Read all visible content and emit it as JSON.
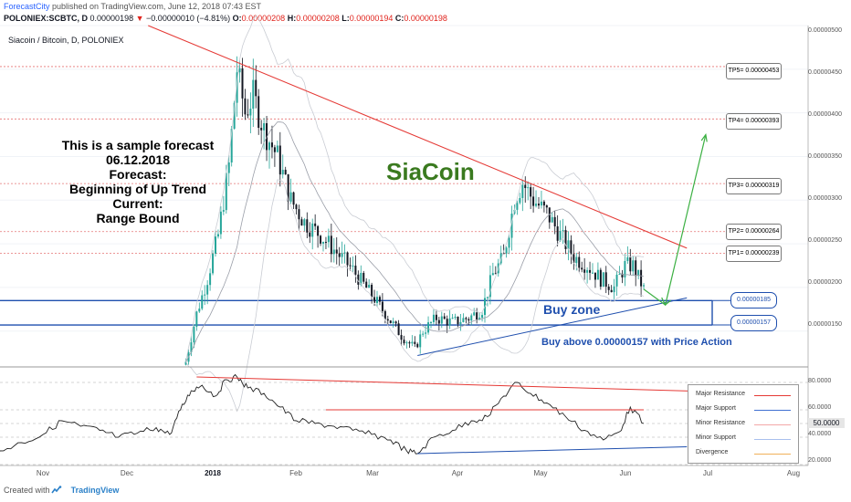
{
  "header": {
    "brand": "ForecastCity",
    "published": " published on TradingView.com, June 12, 2018 07:43 EST",
    "symbol": "POLONIEX:SCBTC, D",
    "last": "0.00000198",
    "change": "−0.00000010 (−4.81%)",
    "o_label": "O:",
    "o": "0.00000208",
    "h_label": "H:",
    "h": "0.00000208",
    "l_label": "L:",
    "l": "0.00000194",
    "c_label": "C:",
    "c": "0.00000198",
    "arrow": "▼"
  },
  "pane_title": "Siacoin / Bitcoin, D, POLONIEX",
  "forecast_text": [
    "This is a sample forecast",
    "06.12.2018",
    "Forecast:",
    "Beginning of Up Trend",
    "Current:",
    "Range Bound"
  ],
  "annotation_title": "SiaCoin",
  "buy_zone_label": "Buy zone",
  "buy_above_label": "Buy above 0.00000157 with Price Action",
  "targets": [
    {
      "label": "TP5= 0.00000453",
      "value": 4.53e-06
    },
    {
      "label": "TP4= 0.00000393",
      "value": 3.93e-06
    },
    {
      "label": "TP3= 0.00000319",
      "value": 3.19e-06
    },
    {
      "label": "TP2= 0.00000264",
      "value": 2.64e-06
    },
    {
      "label": "TP1= 0.00000239",
      "value": 2.39e-06
    }
  ],
  "zones": [
    {
      "label": "0.00000185",
      "value": 1.85e-06
    },
    {
      "label": "0.00000157",
      "value": 1.57e-06
    }
  ],
  "price_axis": [
    "0.00000500",
    "0.00000450",
    "0.00000400",
    "0.00000350",
    "0.00000300",
    "0.00000250",
    "0.00000200",
    "0.00000150"
  ],
  "rsi_axis": [
    "80.0000",
    "60.0000",
    "40.0000",
    "20.0000"
  ],
  "rsi_current": "50.0000",
  "time_axis": [
    "Nov",
    "Dec",
    "2018",
    "Feb",
    "Mar",
    "Apr",
    "May",
    "Jun",
    "Jul",
    "Aug"
  ],
  "legend": [
    {
      "label": "Major Resistance",
      "color": "#e53935"
    },
    {
      "label": "Major Support",
      "color": "#3f6fd1"
    },
    {
      "label": "Minor Resistance",
      "color": "#f3a7a7"
    },
    {
      "label": "Minor Support",
      "color": "#a9c0ee"
    },
    {
      "label": "Divergence",
      "color": "#f0b15a"
    }
  ],
  "footer": {
    "created": "Created with",
    "tv": "TradingView"
  },
  "colors": {
    "up": "#26a69a",
    "down": "#131722",
    "resistance": "#e53935",
    "support": "#1f4fae",
    "arrow": "#3cb043",
    "title_green": "#3a7a1f"
  },
  "chart_data": {
    "type": "candlestick",
    "title": "Siacoin / Bitcoin, D, POLONIEX",
    "ylim": [
      1.1e-06,
      5e-06
    ],
    "x_range": [
      "2017-10-16",
      "2018-08-12"
    ],
    "price_path": [
      [
        "2017-12-24",
        1.15e-06
      ],
      [
        "2017-12-28",
        1.7e-06
      ],
      [
        "2018-01-01",
        2.1e-06
      ],
      [
        "2018-01-05",
        2.6e-06
      ],
      [
        "2018-01-09",
        3.4e-06
      ],
      [
        "2018-01-12",
        4.5e-06
      ],
      [
        "2018-01-15",
        4e-06
      ],
      [
        "2018-01-18",
        4.2e-06
      ],
      [
        "2018-01-22",
        3.8e-06
      ],
      [
        "2018-01-27",
        3.5e-06
      ],
      [
        "2018-02-01",
        3e-06
      ],
      [
        "2018-02-06",
        2.75e-06
      ],
      [
        "2018-02-12",
        2.6e-06
      ],
      [
        "2018-02-18",
        2.4e-06
      ],
      [
        "2018-02-24",
        2.2e-06
      ],
      [
        "2018-03-02",
        1.95e-06
      ],
      [
        "2018-03-08",
        1.7e-06
      ],
      [
        "2018-03-14",
        1.45e-06
      ],
      [
        "2018-03-19",
        1.3e-06
      ],
      [
        "2018-03-22",
        1.5e-06
      ],
      [
        "2018-03-27",
        1.65e-06
      ],
      [
        "2018-04-02",
        1.6e-06
      ],
      [
        "2018-04-08",
        1.65e-06
      ],
      [
        "2018-04-13",
        1.75e-06
      ],
      [
        "2018-04-17",
        2.15e-06
      ],
      [
        "2018-04-21",
        2.35e-06
      ],
      [
        "2018-04-25",
        3e-06
      ],
      [
        "2018-04-28",
        3.2e-06
      ],
      [
        "2018-05-02",
        3e-06
      ],
      [
        "2018-05-07",
        2.85e-06
      ],
      [
        "2018-05-12",
        2.6e-06
      ],
      [
        "2018-05-17",
        2.35e-06
      ],
      [
        "2018-05-22",
        2.25e-06
      ],
      [
        "2018-05-27",
        2.1e-06
      ],
      [
        "2018-06-01",
        2e-06
      ],
      [
        "2018-06-05",
        2.25e-06
      ],
      [
        "2018-06-08",
        2.25e-06
      ],
      [
        "2018-06-12",
        1.98e-06
      ]
    ],
    "resistance_line": [
      [
        "2017-12-10",
        5e-06
      ],
      [
        "2018-06-28",
        2.45e-06
      ]
    ],
    "support_line": [
      [
        "2018-03-20",
        1.22e-06
      ],
      [
        "2018-06-28",
        1.88e-06
      ]
    ],
    "projection": [
      [
        "2018-06-12",
        1.98e-06
      ],
      [
        "2018-06-20",
        1.8e-06
      ],
      [
        "2018-07-05",
        3.75e-06
      ]
    ],
    "rsi": {
      "ylim": [
        20,
        90
      ],
      "path": [
        [
          "2017-10-16",
          30
        ],
        [
          "2017-10-24",
          36
        ],
        [
          "2017-11-01",
          42
        ],
        [
          "2017-11-08",
          52
        ],
        [
          "2017-11-15",
          48
        ],
        [
          "2017-11-22",
          45
        ],
        [
          "2017-11-29",
          40
        ],
        [
          "2017-12-06",
          43
        ],
        [
          "2017-12-13",
          47
        ],
        [
          "2017-12-18",
          42
        ],
        [
          "2017-12-22",
          60
        ],
        [
          "2017-12-26",
          74
        ],
        [
          "2017-12-30",
          78
        ],
        [
          "2018-01-04",
          70
        ],
        [
          "2018-01-08",
          82
        ],
        [
          "2018-01-12",
          84
        ],
        [
          "2018-01-16",
          76
        ],
        [
          "2018-01-22",
          72
        ],
        [
          "2018-01-28",
          62
        ],
        [
          "2018-02-03",
          52
        ],
        [
          "2018-02-10",
          50
        ],
        [
          "2018-02-17",
          48
        ],
        [
          "2018-02-24",
          45
        ],
        [
          "2018-03-03",
          42
        ],
        [
          "2018-03-10",
          38
        ],
        [
          "2018-03-16",
          30
        ],
        [
          "2018-03-20",
          28
        ],
        [
          "2018-03-26",
          40
        ],
        [
          "2018-04-02",
          45
        ],
        [
          "2018-04-09",
          52
        ],
        [
          "2018-04-15",
          55
        ],
        [
          "2018-04-21",
          70
        ],
        [
          "2018-04-26",
          80
        ],
        [
          "2018-05-01",
          72
        ],
        [
          "2018-05-07",
          65
        ],
        [
          "2018-05-14",
          55
        ],
        [
          "2018-05-21",
          45
        ],
        [
          "2018-05-28",
          38
        ],
        [
          "2018-06-03",
          44
        ],
        [
          "2018-06-07",
          62
        ],
        [
          "2018-06-12",
          50
        ]
      ],
      "levels": [
        80,
        60,
        50,
        40,
        20
      ],
      "resistance": [
        [
          "2017-12-28",
          84
        ],
        [
          "2018-07-12",
          73
        ]
      ],
      "resistance2": [
        [
          "2018-02-14",
          60
        ],
        [
          "2018-06-12",
          60
        ]
      ],
      "support": [
        [
          "2018-03-20",
          28
        ],
        [
          "2018-06-28",
          33
        ]
      ]
    }
  }
}
